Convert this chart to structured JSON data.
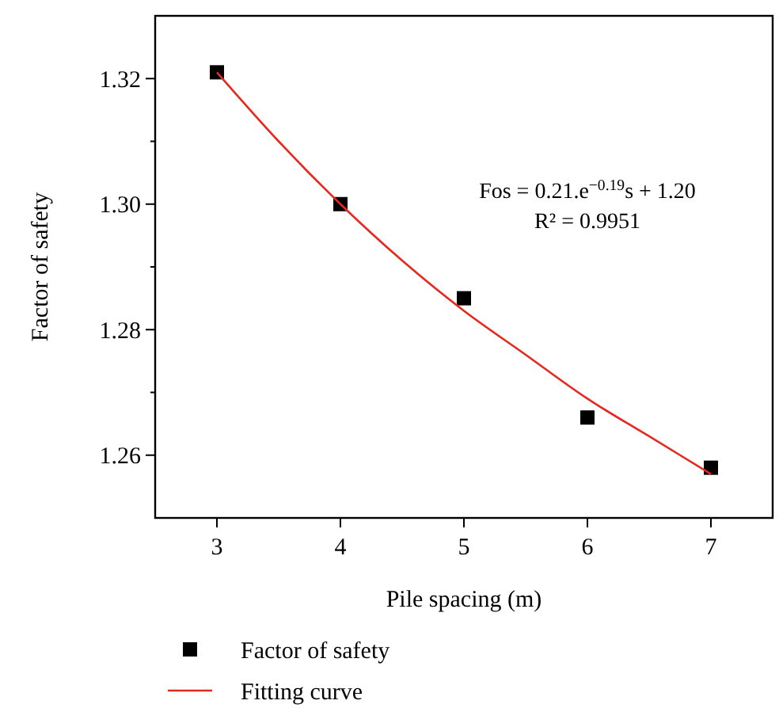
{
  "chart_data": {
    "type": "scatter",
    "xlabel": "Pile spacing (m)",
    "ylabel": "Factor of safety",
    "xlim": [
      2.5,
      7.5
    ],
    "xticks": [
      3,
      4,
      5,
      6,
      7
    ],
    "ylim": [
      1.25,
      1.33
    ],
    "yticks": [
      1.26,
      {
        "value": 1.27,
        "label": null
      },
      1.28,
      {
        "value": 1.29,
        "label": null
      },
      {
        "value": 1.3,
        "label": "1.30"
      },
      {
        "value": 1.31,
        "label": null
      },
      1.32
    ],
    "series": [
      {
        "name": "Factor of safety",
        "color": "#000000",
        "marker": "square",
        "x": [
          3,
          4,
          5,
          6,
          7
        ],
        "values": [
          1.321,
          1.3,
          1.285,
          1.266,
          1.258
        ]
      },
      {
        "name": "Fitting curve",
        "type": "line",
        "color": "#e8281e",
        "line_style": "solid",
        "x": [
          3,
          3.5,
          4,
          4.5,
          5,
          5.5,
          6,
          6.5,
          7
        ],
        "values": [
          1.321,
          1.31,
          1.3,
          1.291,
          1.283,
          1.276,
          1.269,
          1.263,
          1.257
        ]
      }
    ],
    "annotations": [
      "Fos = 0.21.e$^{−0.19}$s + 1.20",
      "R² = 0.9951"
    ],
    "legend": "bottom",
    "grid": false
  }
}
